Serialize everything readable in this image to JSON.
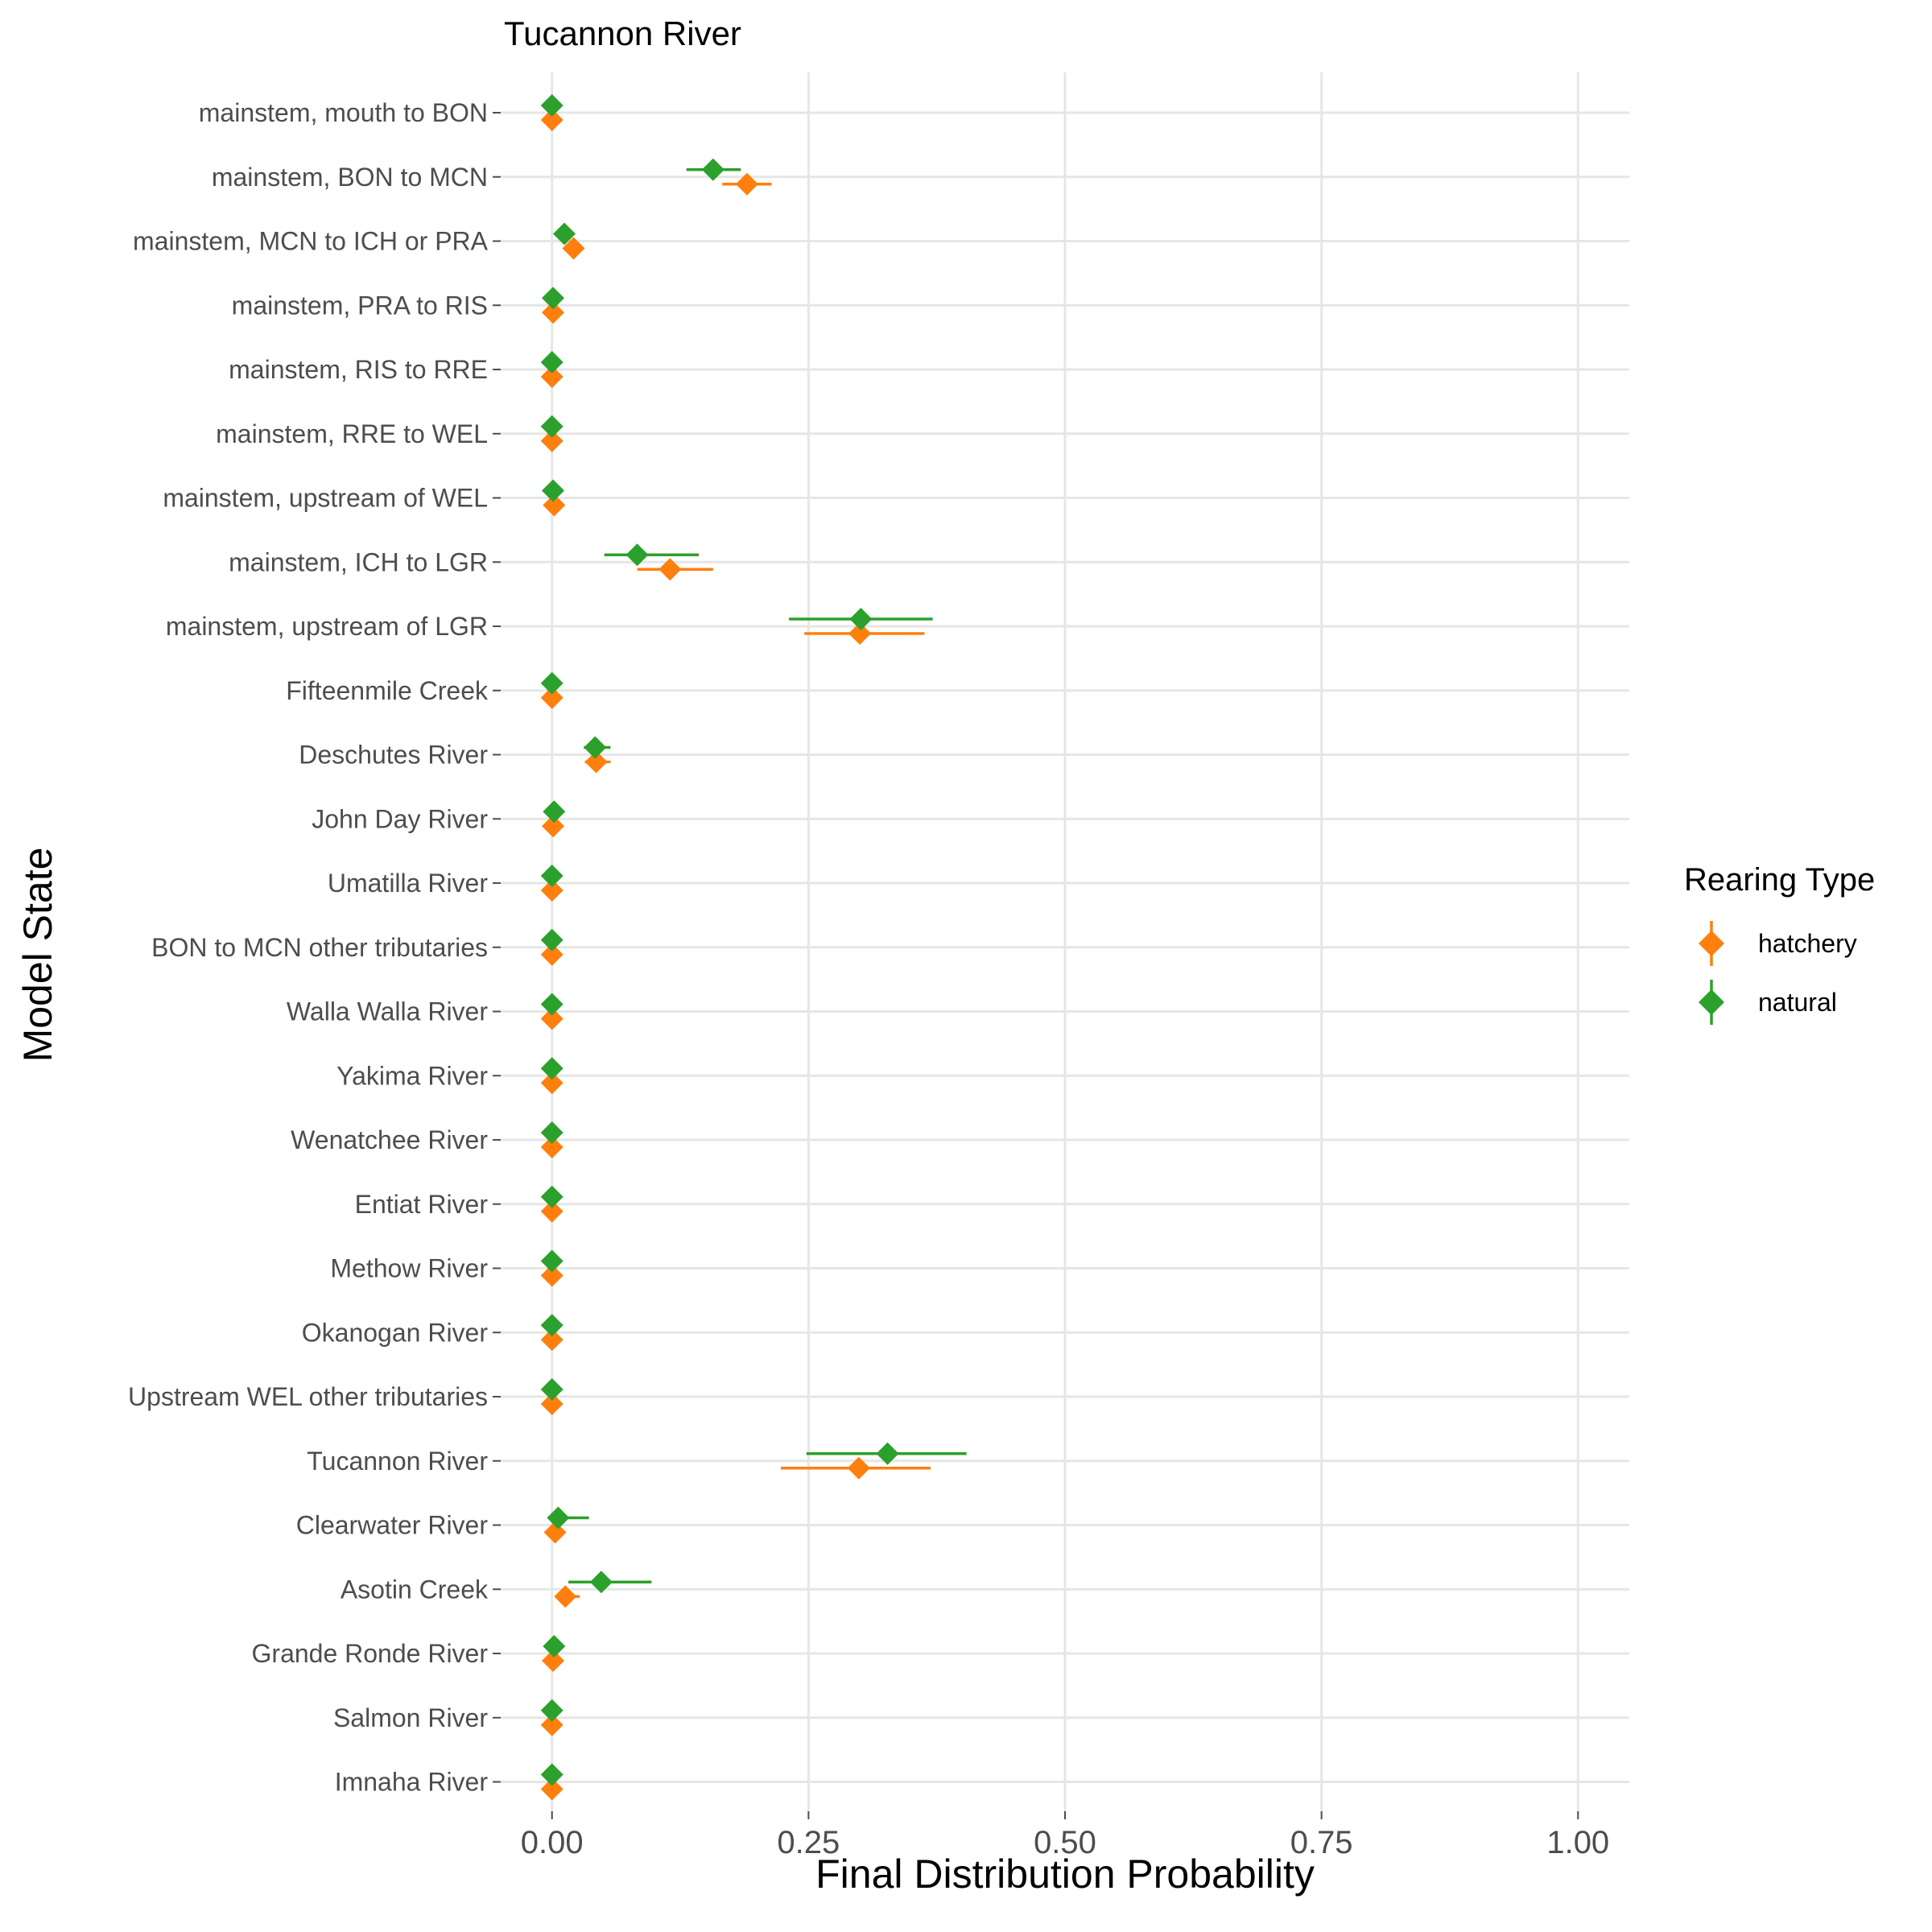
{
  "chart_data": {
    "type": "scatter",
    "title": "Tucannon River",
    "xlabel": "Final Distribution Probability",
    "ylabel": "Model State",
    "xlim": [
      -0.05,
      1.05
    ],
    "xticks": [
      0.0,
      0.25,
      0.5,
      0.75,
      1.0
    ],
    "xtick_labels": [
      "0.00",
      "0.25",
      "0.50",
      "0.75",
      "1.00"
    ],
    "grid": true,
    "legend": {
      "title": "Rearing Type",
      "position": "right"
    },
    "categories": [
      "mainstem, mouth to BON",
      "mainstem, BON to MCN",
      "mainstem, MCN to ICH or PRA",
      "mainstem, PRA to RIS",
      "mainstem, RIS to RRE",
      "mainstem, RRE to WEL",
      "mainstem, upstream of WEL",
      "mainstem, ICH to LGR",
      "mainstem, upstream of LGR",
      "Fifteenmile Creek",
      "Deschutes River",
      "John Day River",
      "Umatilla River",
      "BON to MCN other tributaries",
      "Walla Walla River",
      "Yakima River",
      "Wenatchee River",
      "Entiat River",
      "Methow River",
      "Okanogan River",
      "Upstream WEL other tributaries",
      "Tucannon River",
      "Clearwater River",
      "Asotin Creek",
      "Grande Ronde River",
      "Salmon River",
      "Imnaha River"
    ],
    "series": [
      {
        "name": "hatchery",
        "color": "#FF7F0E",
        "values": [
          0.0,
          0.19,
          0.021,
          0.001,
          0.0,
          0.0,
          0.002,
          0.115,
          0.3,
          0.0,
          0.043,
          0.001,
          0.0,
          0.0,
          0.0,
          0.0,
          0.0,
          0.0,
          0.0,
          0.0,
          0.0,
          0.299,
          0.003,
          0.013,
          0.001,
          0.0,
          0.0
        ],
        "lower": [
          0.0,
          0.166,
          0.014,
          0.0,
          0.0,
          0.0,
          0.0,
          0.083,
          0.246,
          0.0,
          0.032,
          0.0,
          0.0,
          0.0,
          0.0,
          0.0,
          0.0,
          0.0,
          0.0,
          0.0,
          0.0,
          0.223,
          0.0,
          0.005,
          0.0,
          0.0,
          0.0
        ],
        "upper": [
          0.0,
          0.214,
          0.029,
          0.003,
          0.0,
          0.0,
          0.005,
          0.157,
          0.363,
          0.0,
          0.057,
          0.003,
          0.0,
          0.0,
          0.0,
          0.0,
          0.0,
          0.0,
          0.0,
          0.0,
          0.0,
          0.369,
          0.009,
          0.027,
          0.004,
          0.0,
          0.0
        ]
      },
      {
        "name": "natural",
        "color": "#2CA02C",
        "values": [
          0.0,
          0.157,
          0.012,
          0.001,
          0.0,
          0.0,
          0.001,
          0.083,
          0.301,
          0.0,
          0.042,
          0.002,
          0.0,
          0.0,
          0.0,
          0.0,
          0.0,
          0.0,
          0.0,
          0.0,
          0.0,
          0.327,
          0.006,
          0.048,
          0.002,
          0.0,
          0.0
        ],
        "lower": [
          0.0,
          0.131,
          0.006,
          0.0,
          0.0,
          0.0,
          0.0,
          0.051,
          0.231,
          0.0,
          0.031,
          0.0,
          0.0,
          0.0,
          0.0,
          0.0,
          0.0,
          0.0,
          0.0,
          0.0,
          0.0,
          0.248,
          0.0,
          0.016,
          0.0,
          0.0,
          0.0
        ],
        "upper": [
          0.0,
          0.184,
          0.02,
          0.003,
          0.0,
          0.0,
          0.004,
          0.143,
          0.371,
          0.0,
          0.057,
          0.005,
          0.0,
          0.0,
          0.0,
          0.0,
          0.0,
          0.0,
          0.0,
          0.0,
          0.0,
          0.404,
          0.036,
          0.097,
          0.005,
          0.0,
          0.0
        ]
      }
    ]
  }
}
